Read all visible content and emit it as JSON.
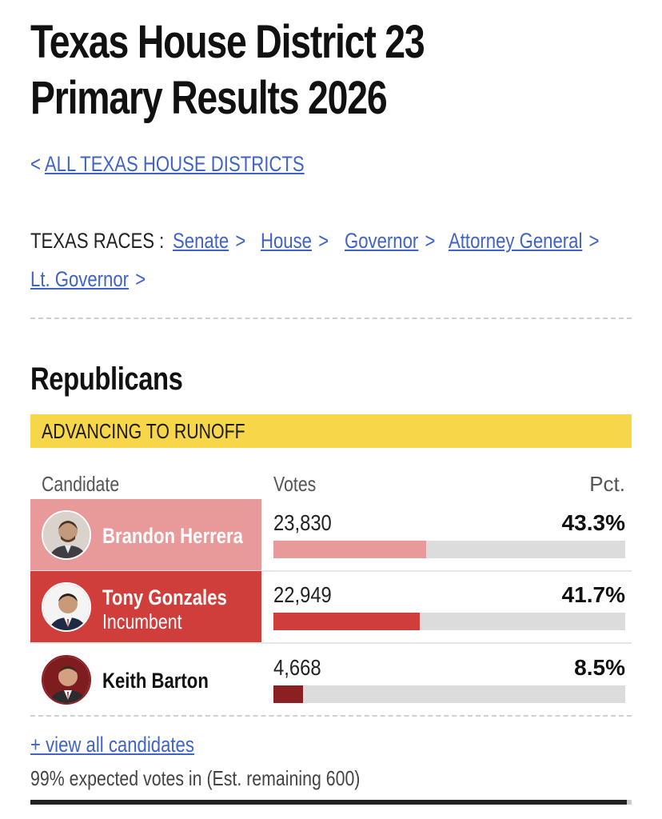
{
  "page": {
    "title_line1": "Texas House District 23",
    "title_line2": "Primary Results 2026",
    "back_link": {
      "chevron": "<",
      "label": "ALL TEXAS HOUSE DISTRICTS"
    }
  },
  "races_nav": {
    "label": "TEXAS RACES :",
    "chevron": ">",
    "links": [
      {
        "label": "Senate"
      },
      {
        "label": "House"
      },
      {
        "label": "Governor"
      },
      {
        "label": "Attorney General"
      },
      {
        "label": "Lt. Governor"
      }
    ]
  },
  "results": {
    "party": "Republicans",
    "status_banner": "ADVANCING TO RUNOFF",
    "colors": {
      "banner": "#f7d64a",
      "link": "#3f63c8"
    },
    "columns": {
      "candidate": "Candidate",
      "votes": "Votes",
      "pct": "Pct."
    },
    "candidates": [
      {
        "name": "Brandon Herrera",
        "subtitle": "",
        "votes": "23,830",
        "pct": "43.3%",
        "share": 0.433,
        "row_bg": "#e8999a",
        "bar_color": "#e8999a",
        "name_color": "#ffffff",
        "avatar_icon": "person-avatar-icon"
      },
      {
        "name": "Tony Gonzales",
        "subtitle": "Incumbent",
        "votes": "22,949",
        "pct": "41.7%",
        "share": 0.417,
        "row_bg": "#cf3e3a",
        "bar_color": "#cf3e3a",
        "name_color": "#ffffff",
        "avatar_icon": "person-avatar-icon"
      },
      {
        "name": "Keith Barton",
        "subtitle": "",
        "votes": "4,668",
        "pct": "8.5%",
        "share": 0.085,
        "row_bg": "#ffffff",
        "bar_color": "#8c1f22",
        "name_color": "#111111",
        "avatar_icon": "person-avatar-icon"
      }
    ],
    "view_all": "+ view all candidates",
    "expected_votes": "99% expected votes in (Est. remaining 600)"
  }
}
